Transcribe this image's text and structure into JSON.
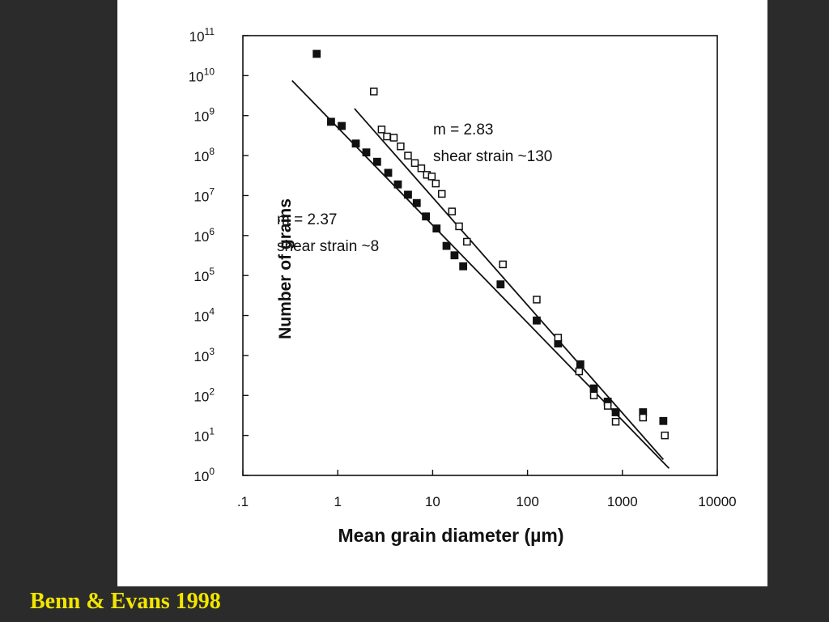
{
  "caption": "Benn & Evans 1998",
  "colors": {
    "background": "#2b2b2b",
    "panel": "#ffffff",
    "caption": "#f2e600",
    "ink": "#111111"
  },
  "chart_data": {
    "type": "scatter",
    "title": "",
    "xlabel": "Mean grain diameter (µm)",
    "ylabel": "Number of grains",
    "xscale": "log",
    "yscale": "log",
    "xlim": [
      0.1,
      10000
    ],
    "ylim": [
      1,
      100000000000
    ],
    "x_tick_values": [
      0.1,
      1,
      10,
      100,
      1000,
      10000
    ],
    "x_tick_labels": [
      ".1",
      "1",
      "10",
      "100",
      "1000",
      "10000"
    ],
    "y_tick_exponents": [
      0,
      1,
      2,
      3,
      4,
      5,
      6,
      7,
      8,
      9,
      10,
      11
    ],
    "y_tick_base": "10",
    "grid": false,
    "series": [
      {
        "marker": "filled-square",
        "annotation": [
          "m = 2.37",
          "shear strain ~8"
        ],
        "points": [
          [
            0.6,
            35000000000
          ],
          [
            0.85,
            700000000
          ],
          [
            1.1,
            550000000
          ],
          [
            1.55,
            200000000
          ],
          [
            2.0,
            120000000
          ],
          [
            2.6,
            70000000
          ],
          [
            3.4,
            37000000
          ],
          [
            4.3,
            19000000
          ],
          [
            5.5,
            10500000
          ],
          [
            6.8,
            6500000
          ],
          [
            8.5,
            3000000
          ],
          [
            11,
            1500000
          ],
          [
            14,
            550000
          ],
          [
            17,
            320000
          ],
          [
            21,
            170000
          ],
          [
            52,
            60000
          ],
          [
            125,
            7500
          ],
          [
            210,
            2000
          ],
          [
            360,
            600
          ],
          [
            500,
            150
          ],
          [
            700,
            70
          ],
          [
            850,
            38
          ],
          [
            1650,
            38
          ],
          [
            2700,
            23
          ]
        ],
        "fit_line": [
          [
            0.33,
            7500000000
          ],
          [
            3100,
            1.5
          ]
        ]
      },
      {
        "marker": "open-square",
        "annotation": [
          "m = 2.83",
          "shear strain ~130"
        ],
        "points": [
          [
            2.4,
            4000000000
          ],
          [
            2.9,
            450000000
          ],
          [
            3.3,
            300000000
          ],
          [
            3.9,
            280000000
          ],
          [
            4.6,
            170000000
          ],
          [
            5.5,
            100000000
          ],
          [
            6.5,
            65000000
          ],
          [
            7.6,
            48000000
          ],
          [
            8.7,
            33000000
          ],
          [
            9.8,
            30000000
          ],
          [
            10.8,
            20000000
          ],
          [
            12.5,
            11000000
          ],
          [
            16,
            4000000
          ],
          [
            19,
            1700000
          ],
          [
            23,
            700000
          ],
          [
            55,
            190000
          ],
          [
            125,
            25000
          ],
          [
            210,
            2800
          ],
          [
            350,
            400
          ],
          [
            500,
            100
          ],
          [
            700,
            55
          ],
          [
            850,
            22
          ],
          [
            1650,
            28
          ],
          [
            2800,
            10
          ]
        ],
        "fit_line": [
          [
            1.5,
            1500000000
          ],
          [
            2700,
            2.5
          ]
        ]
      }
    ]
  }
}
